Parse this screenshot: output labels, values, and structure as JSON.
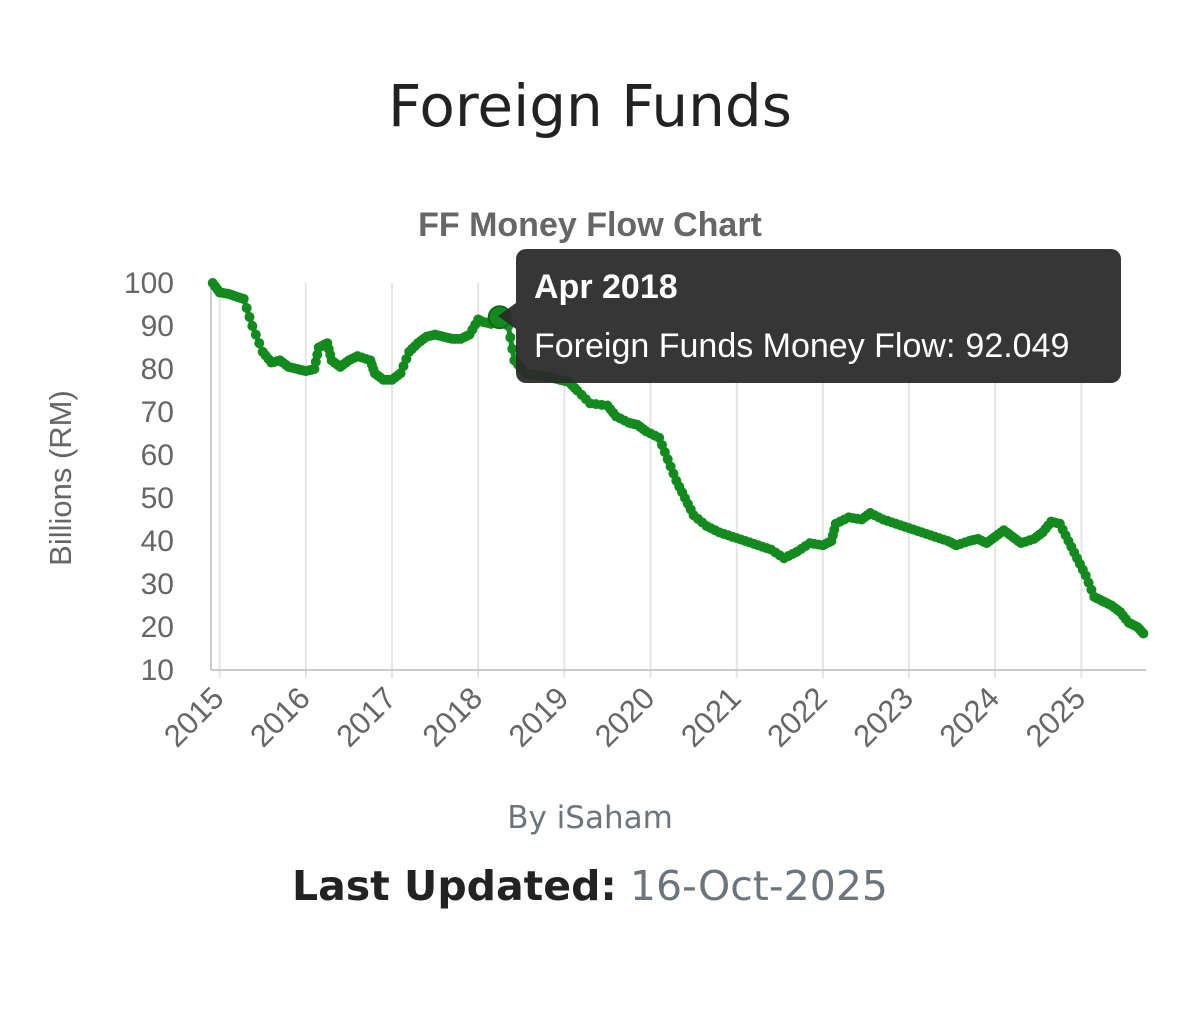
{
  "page": {
    "title": "Foreign Funds",
    "credit": "By iSaham",
    "last_updated_label": "Last Updated:",
    "last_updated_value": "16-Oct-2025"
  },
  "tooltip": {
    "title": "Apr 2018",
    "series_label": "Foreign Funds Money Flow:",
    "value": "92.049",
    "x": 2018.25
  },
  "colors": {
    "line": "#128a1e",
    "grid": "#e4e4e4",
    "axis": "#cccccc",
    "text": "#666666",
    "tooltip_bg": "#2b2b2b"
  },
  "chart_data": {
    "type": "line",
    "title": "FF Money Flow Chart",
    "xlabel": "",
    "ylabel": "Billions (RM)",
    "xlim": [
      2014.9,
      2025.75
    ],
    "ylim": [
      10,
      100
    ],
    "grid": true,
    "x_ticks": [
      "2015",
      "2016",
      "2017",
      "2018",
      "2019",
      "2020",
      "2021",
      "2022",
      "2023",
      "2024",
      "2025"
    ],
    "y_ticks": [
      10,
      20,
      30,
      40,
      50,
      60,
      70,
      80,
      90,
      100
    ],
    "series": [
      {
        "name": "Foreign Funds Money Flow",
        "points": [
          [
            2014.92,
            100
          ],
          [
            2015.0,
            97.8
          ],
          [
            2015.1,
            97.5
          ],
          [
            2015.2,
            96.8
          ],
          [
            2015.28,
            96.3
          ],
          [
            2015.38,
            90
          ],
          [
            2015.5,
            84
          ],
          [
            2015.6,
            81.5
          ],
          [
            2015.7,
            82
          ],
          [
            2015.8,
            80.5
          ],
          [
            2015.9,
            80
          ],
          [
            2016.0,
            79.5
          ],
          [
            2016.1,
            80
          ],
          [
            2016.15,
            85
          ],
          [
            2016.25,
            86
          ],
          [
            2016.3,
            82
          ],
          [
            2016.4,
            80.5
          ],
          [
            2016.5,
            82
          ],
          [
            2016.6,
            83
          ],
          [
            2016.75,
            82
          ],
          [
            2016.8,
            79
          ],
          [
            2016.9,
            77.5
          ],
          [
            2017.0,
            77.5
          ],
          [
            2017.1,
            79
          ],
          [
            2017.2,
            84
          ],
          [
            2017.3,
            86
          ],
          [
            2017.4,
            87.5
          ],
          [
            2017.5,
            88
          ],
          [
            2017.6,
            87.5
          ],
          [
            2017.7,
            87
          ],
          [
            2017.8,
            87
          ],
          [
            2017.9,
            88
          ],
          [
            2018.0,
            91.5
          ],
          [
            2018.05,
            91
          ],
          [
            2018.15,
            90.5
          ],
          [
            2018.25,
            92.049
          ],
          [
            2018.35,
            90
          ],
          [
            2018.42,
            82
          ],
          [
            2018.55,
            79
          ],
          [
            2018.7,
            78.5
          ],
          [
            2018.85,
            78
          ],
          [
            2018.95,
            77.5
          ],
          [
            2019.05,
            77
          ],
          [
            2019.15,
            75
          ],
          [
            2019.3,
            72
          ],
          [
            2019.5,
            71.5
          ],
          [
            2019.6,
            69
          ],
          [
            2019.75,
            67.5
          ],
          [
            2019.85,
            67
          ],
          [
            2019.95,
            65.5
          ],
          [
            2020.1,
            64
          ],
          [
            2020.2,
            59
          ],
          [
            2020.3,
            54
          ],
          [
            2020.4,
            50
          ],
          [
            2020.5,
            46
          ],
          [
            2020.65,
            43.5
          ],
          [
            2020.8,
            42
          ],
          [
            2020.95,
            41
          ],
          [
            2021.1,
            40
          ],
          [
            2021.25,
            39
          ],
          [
            2021.4,
            38
          ],
          [
            2021.55,
            36
          ],
          [
            2021.7,
            37.5
          ],
          [
            2021.85,
            39.5
          ],
          [
            2022.0,
            39
          ],
          [
            2022.1,
            40
          ],
          [
            2022.15,
            44
          ],
          [
            2022.3,
            45.5
          ],
          [
            2022.45,
            45
          ],
          [
            2022.55,
            46.5
          ],
          [
            2022.7,
            45
          ],
          [
            2022.85,
            44
          ],
          [
            2023.0,
            43
          ],
          [
            2023.15,
            42
          ],
          [
            2023.3,
            41
          ],
          [
            2023.45,
            40
          ],
          [
            2023.55,
            39
          ],
          [
            2023.7,
            40
          ],
          [
            2023.8,
            40.5
          ],
          [
            2023.9,
            39.5
          ],
          [
            2024.0,
            41
          ],
          [
            2024.1,
            42.5
          ],
          [
            2024.2,
            41
          ],
          [
            2024.3,
            39.5
          ],
          [
            2024.45,
            40.5
          ],
          [
            2024.55,
            42
          ],
          [
            2024.65,
            44.5
          ],
          [
            2024.75,
            44
          ],
          [
            2024.85,
            40
          ],
          [
            2024.95,
            36
          ],
          [
            2025.05,
            32
          ],
          [
            2025.15,
            27
          ],
          [
            2025.25,
            26
          ],
          [
            2025.35,
            25
          ],
          [
            2025.45,
            23.5
          ],
          [
            2025.55,
            21
          ],
          [
            2025.65,
            20
          ],
          [
            2025.72,
            18.5
          ]
        ]
      }
    ]
  }
}
